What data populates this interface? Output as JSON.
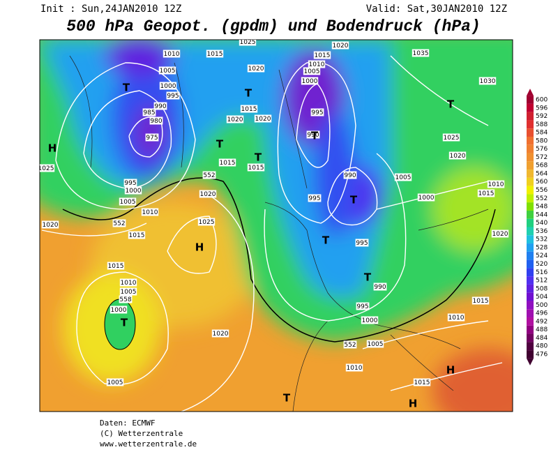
{
  "header": {
    "init": "Init : Sun,24JAN2010 12Z",
    "valid": "Valid: Sat,30JAN2010 12Z",
    "title": "500 hPa Geopot. (gpdm) und Bodendruck (hPa)"
  },
  "colorbar": {
    "levels": [
      600,
      596,
      592,
      588,
      584,
      580,
      576,
      572,
      568,
      564,
      560,
      556,
      552,
      548,
      544,
      540,
      536,
      532,
      528,
      524,
      520,
      516,
      512,
      508,
      504,
      500,
      496,
      492,
      488,
      484,
      480,
      476
    ],
    "colors": [
      "#a00030",
      "#c00030",
      "#d02030",
      "#e03030",
      "#e85030",
      "#f07030",
      "#f08030",
      "#f09030",
      "#f0a030",
      "#f0b830",
      "#f0d020",
      "#f0f000",
      "#c0f000",
      "#80e000",
      "#40d040",
      "#20d080",
      "#20d0b0",
      "#20c0e0",
      "#20a0f0",
      "#2080f0",
      "#2060f0",
      "#3040f0",
      "#5030f0",
      "#6020e0",
      "#7010d0",
      "#9010c0",
      "#a010b0",
      "#b010a0",
      "#900080",
      "#700060",
      "#500040",
      "#400030"
    ]
  },
  "isobar_labels": [
    "1025",
    "1010",
    "1015",
    "1020",
    "1035",
    "1015",
    "1010",
    "1005",
    "1005",
    "1020",
    "1000",
    "1000",
    "995",
    "1030",
    "990",
    "985",
    "1015",
    "995",
    "980",
    "1020",
    "1020",
    "975",
    "990",
    "1025",
    "1020",
    "1015",
    "1015",
    "1025",
    "552",
    "990",
    "1005",
    "995",
    "1000",
    "1020",
    "1010",
    "1015",
    "995",
    "1000",
    "1005",
    "1010",
    "1025",
    "552",
    "1020",
    "1015",
    "1020",
    "995",
    "1015",
    "1010",
    "990",
    "1005",
    "558",
    "1015",
    "995",
    "1000",
    "1010",
    "1000",
    "1020",
    "552",
    "1005",
    "1010",
    "1005",
    "1015"
  ],
  "pressure_centers": [
    "T",
    "T",
    "H",
    "T",
    "T",
    "T",
    "T",
    "T",
    "H",
    "T",
    "T",
    "T",
    "H",
    "T",
    "H"
  ],
  "credits": [
    "Daten: ECMWF",
    "(C) Wetterzentrale",
    "www.wetterzentrale.de"
  ]
}
